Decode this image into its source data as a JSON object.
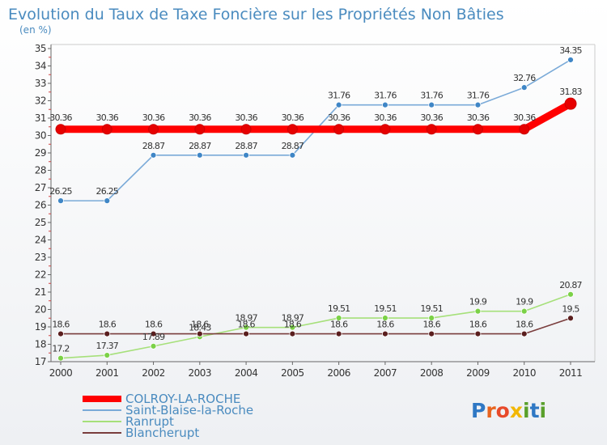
{
  "chart_data": {
    "type": "line",
    "title": "Evolution du Taux de Taxe Foncière sur les Propriétés Non Bâties",
    "subtitle": "(en %)",
    "xlabel": "",
    "ylabel": "",
    "categories": [
      "2000",
      "2001",
      "2002",
      "2003",
      "2004",
      "2005",
      "2006",
      "2007",
      "2008",
      "2009",
      "2010",
      "2011"
    ],
    "ylim": [
      17,
      35
    ],
    "yticks": [
      17,
      18,
      19,
      20,
      21,
      22,
      23,
      24,
      25,
      26,
      27,
      28,
      29,
      30,
      31,
      32,
      33,
      34,
      35
    ],
    "grid": false,
    "legend_position": "bottom-left",
    "series": [
      {
        "name": "COLROY-LA-ROCHE",
        "color": "#ff0000",
        "marker_color": "#e60000",
        "emphasis": true,
        "values": [
          30.36,
          30.36,
          30.36,
          30.36,
          30.36,
          30.36,
          30.36,
          30.36,
          30.36,
          30.36,
          30.36,
          31.83
        ],
        "labels": [
          "30.36",
          "30.36",
          "30.36",
          "30.36",
          "30.36",
          "30.36",
          "30.36",
          "30.36",
          "30.36",
          "30.36",
          "30.36",
          "31.83"
        ]
      },
      {
        "name": "Saint-Blaise-la-Roche",
        "color": "#7aaad8",
        "marker_color": "#3f86c6",
        "emphasis": false,
        "values": [
          26.25,
          26.25,
          28.87,
          28.87,
          28.87,
          28.87,
          31.76,
          31.76,
          31.76,
          31.76,
          32.76,
          34.35
        ],
        "labels": [
          "26.25",
          "26.25",
          "28.87",
          "28.87",
          "28.87",
          "28.87",
          "31.76",
          "31.76",
          "31.76",
          "31.76",
          "32.76",
          "34.35"
        ]
      },
      {
        "name": "Ranrupt",
        "color": "#a6e07a",
        "marker_color": "#7bd147",
        "emphasis": false,
        "values": [
          17.2,
          17.37,
          17.89,
          18.43,
          18.97,
          18.97,
          19.51,
          19.51,
          19.51,
          19.9,
          19.9,
          20.87
        ],
        "labels": [
          "17.2",
          "17.37",
          "17.89",
          "18.43",
          "18.97",
          "18.97",
          "19.51",
          "19.51",
          "19.51",
          "19.9",
          "19.9",
          "20.87"
        ]
      },
      {
        "name": "Blancherupt",
        "color": "#7a3d3d",
        "marker_color": "#5a1e1e",
        "emphasis": false,
        "values": [
          18.6,
          18.6,
          18.6,
          18.6,
          18.6,
          18.6,
          18.6,
          18.6,
          18.6,
          18.6,
          18.6,
          19.5
        ],
        "labels": [
          "18.6",
          "18.6",
          "18.6",
          "18.6",
          "18.6",
          "18.6",
          "18.6",
          "18.6",
          "18.6",
          "18.6",
          "18.6",
          "19.5"
        ]
      }
    ]
  },
  "brand": {
    "name": "Proxiti",
    "letters": [
      {
        "ch": "P",
        "color": "#2f78c4"
      },
      {
        "ch": "r",
        "color": "#e8641e"
      },
      {
        "ch": "o",
        "color": "#e84a2a"
      },
      {
        "ch": "x",
        "color": "#f2b705"
      },
      {
        "ch": "i",
        "color": "#5aa02c"
      },
      {
        "ch": "t",
        "color": "#2f78c4"
      },
      {
        "ch": "i",
        "color": "#5aa02c"
      }
    ]
  }
}
